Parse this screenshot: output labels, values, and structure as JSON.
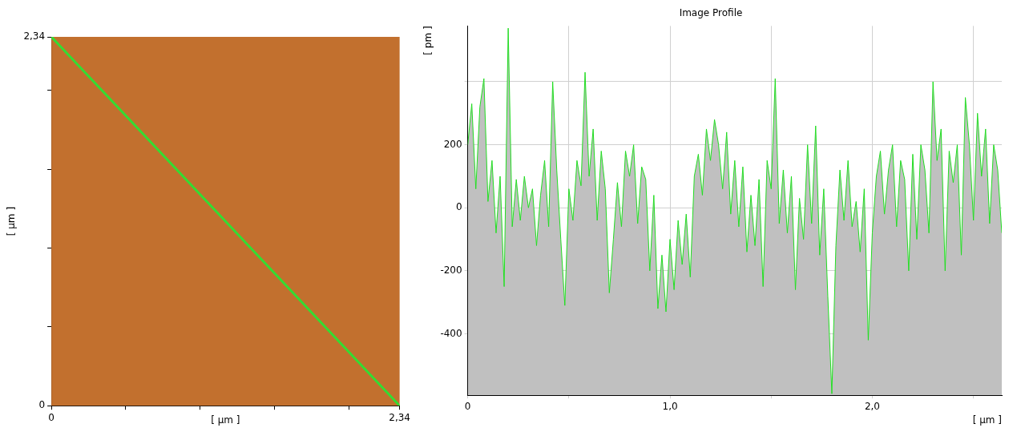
{
  "chart_data": [
    {
      "type": "image",
      "xlim": [
        0,
        2.34
      ],
      "ylim": [
        0,
        2.34
      ],
      "xticks": [
        0,
        {
          "value": 0.5,
          "label": null
        },
        {
          "value": 1,
          "label": null
        },
        {
          "value": 1.5,
          "label": null
        },
        {
          "value": 2,
          "label": null
        },
        {
          "value": 2.34,
          "label": "2,34"
        }
      ],
      "yticks": [
        0,
        {
          "value": 0.5,
          "label": null
        },
        {
          "value": 1,
          "label": null
        },
        {
          "value": 1.5,
          "label": null
        },
        {
          "value": 2,
          "label": null
        },
        {
          "value": 2.34,
          "label": "2,34"
        }
      ],
      "x_label": "[ µm ]",
      "y_label": "[ µm ]",
      "color": "#c2702e",
      "series": [
        {
          "type": "line",
          "color": "#33dd33",
          "x": [
            0,
            2.34
          ],
          "values": [
            2.34,
            0
          ]
        }
      ]
    },
    {
      "type": "area",
      "title": "Image Profile",
      "x_label": "[ µm ]",
      "y_label": "[ pm ]",
      "xlim": [
        0,
        2.64
      ],
      "ylim": [
        -595,
        577
      ],
      "xticks": [
        0,
        {
          "value": 0.5,
          "label": null
        },
        {
          "value": 1,
          "label": "1,0"
        },
        {
          "value": 1.5,
          "label": null
        },
        {
          "value": 2,
          "label": "2,0"
        },
        {
          "value": 2.5,
          "label": null
        }
      ],
      "yticks": [
        -400,
        -200,
        0,
        200,
        {
          "value": 400,
          "label": null
        }
      ],
      "grid": true,
      "color": "#22dd22",
      "x": [
        0.0,
        0.02,
        0.04,
        0.06,
        0.08,
        0.1,
        0.12,
        0.14,
        0.16,
        0.18,
        0.2,
        0.22,
        0.24,
        0.26,
        0.28,
        0.3,
        0.32,
        0.34,
        0.36,
        0.38,
        0.4,
        0.42,
        0.44,
        0.46,
        0.48,
        0.5,
        0.52,
        0.54,
        0.56,
        0.58,
        0.6,
        0.62,
        0.64,
        0.66,
        0.68,
        0.7,
        0.72,
        0.74,
        0.76,
        0.78,
        0.8,
        0.82,
        0.84,
        0.86,
        0.88,
        0.9,
        0.92,
        0.94,
        0.96,
        0.98,
        1.0,
        1.02,
        1.04,
        1.06,
        1.08,
        1.1,
        1.12,
        1.14,
        1.16,
        1.18,
        1.2,
        1.22,
        1.24,
        1.26,
        1.28,
        1.3,
        1.32,
        1.34,
        1.36,
        1.38,
        1.4,
        1.42,
        1.44,
        1.46,
        1.48,
        1.5,
        1.52,
        1.54,
        1.56,
        1.58,
        1.6,
        1.62,
        1.64,
        1.66,
        1.68,
        1.7,
        1.72,
        1.74,
        1.76,
        1.78,
        1.8,
        1.82,
        1.84,
        1.86,
        1.88,
        1.9,
        1.92,
        1.94,
        1.96,
        1.98,
        2.0,
        2.02,
        2.04,
        2.06,
        2.08,
        2.1,
        2.12,
        2.14,
        2.16,
        2.18,
        2.2,
        2.22,
        2.24,
        2.26,
        2.28,
        2.3,
        2.32,
        2.34,
        2.36,
        2.38,
        2.4,
        2.42,
        2.44,
        2.46,
        2.48,
        2.5,
        2.52,
        2.54,
        2.56,
        2.58,
        2.6,
        2.62,
        2.64
      ],
      "values": [
        200,
        330,
        60,
        320,
        410,
        20,
        150,
        -80,
        100,
        -250,
        570,
        -60,
        90,
        -40,
        100,
        0,
        60,
        -120,
        40,
        150,
        -60,
        400,
        120,
        -100,
        -310,
        60,
        -40,
        150,
        70,
        430,
        100,
        250,
        -40,
        180,
        60,
        -270,
        -100,
        80,
        -60,
        180,
        100,
        200,
        -50,
        130,
        90,
        -200,
        40,
        -320,
        -150,
        -330,
        -100,
        -260,
        -40,
        -180,
        -20,
        -220,
        100,
        170,
        40,
        250,
        150,
        280,
        200,
        60,
        240,
        -20,
        150,
        -60,
        130,
        -140,
        40,
        -120,
        90,
        -250,
        150,
        60,
        410,
        -50,
        120,
        -80,
        100,
        -260,
        30,
        -100,
        200,
        -50,
        260,
        -150,
        60,
        -280,
        -590,
        -120,
        120,
        -40,
        150,
        -60,
        20,
        -140,
        60,
        -420,
        -80,
        100,
        180,
        -20,
        120,
        200,
        -60,
        150,
        90,
        -200,
        170,
        -100,
        200,
        120,
        -80,
        400,
        150,
        250,
        -200,
        180,
        80,
        200,
        -150,
        350,
        200,
        -40,
        300,
        100,
        250,
        -50,
        200,
        120,
        -80
      ]
    }
  ]
}
